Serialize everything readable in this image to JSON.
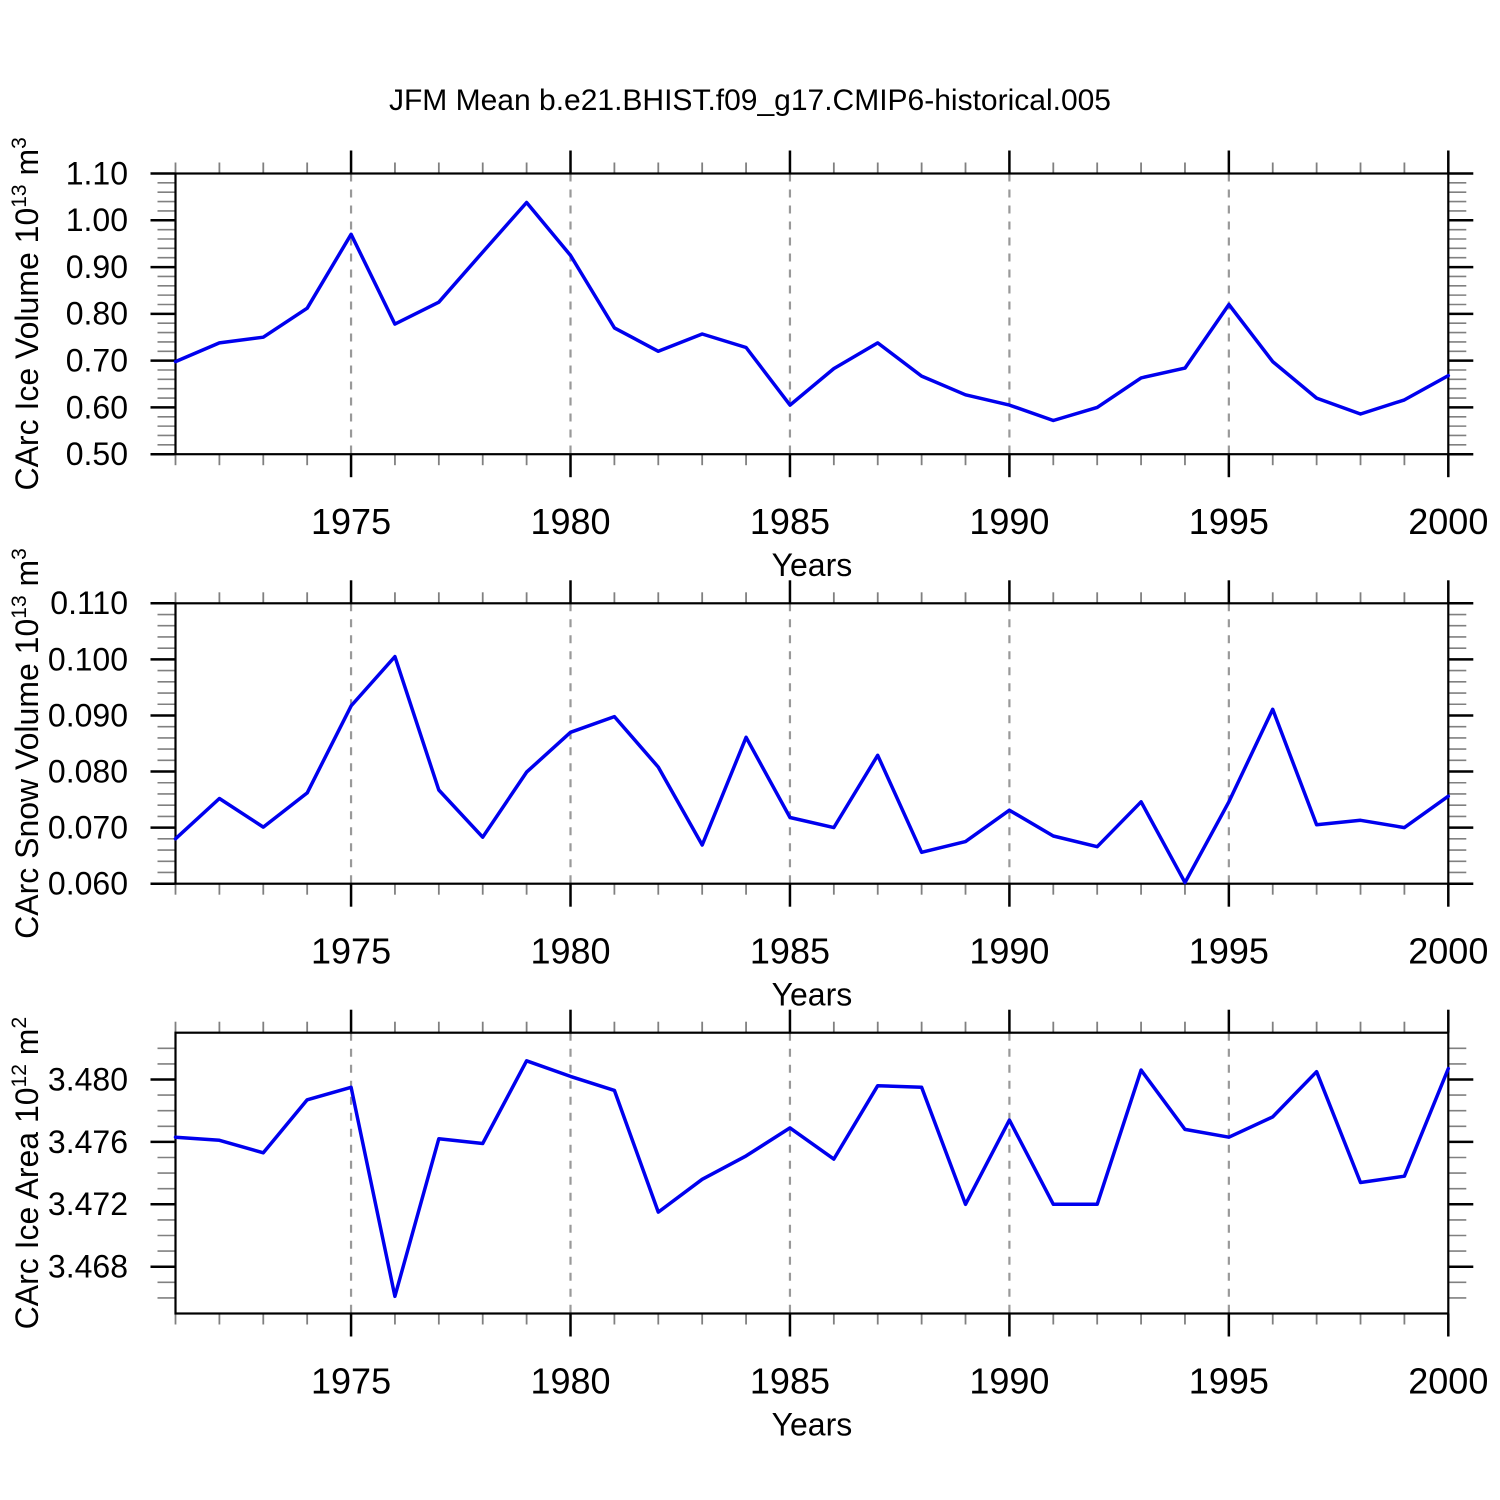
{
  "figure": {
    "title": "JFM Mean b.e21.BHIST.f09_g17.CMIP6-historical.005",
    "background": "#ffffff"
  },
  "style": {
    "line_color": "#0000EE",
    "grid_color": "#999999",
    "axis_color": "#000000",
    "minor_tick_color": "#808080"
  },
  "x": {
    "label": "Years",
    "years": [
      1971,
      1972,
      1973,
      1974,
      1975,
      1976,
      1977,
      1978,
      1979,
      1980,
      1981,
      1982,
      1983,
      1984,
      1985,
      1986,
      1987,
      1988,
      1989,
      1990,
      1991,
      1992,
      1993,
      1994,
      1995,
      1996,
      1997,
      1998,
      1999,
      2000
    ],
    "xlim": [
      1971,
      2000
    ],
    "major": {
      "values": [
        1975,
        1980,
        1985,
        1990,
        1995,
        2000
      ],
      "labels": [
        "1975",
        "1980",
        "1985",
        "1990",
        "1995",
        "2000"
      ]
    },
    "grid_years": [
      1975,
      1980,
      1985,
      1990,
      1995
    ]
  },
  "chart_data": [
    {
      "type": "line",
      "name": "ice-volume",
      "ylabel_parts": {
        "base1": "CArc Ice Volume 10",
        "sup1": "13",
        "base2": " m",
        "sup2": "3"
      },
      "xlabel": "Years",
      "ylim": [
        0.5,
        1.1
      ],
      "yticks": {
        "values": [
          1.1,
          1.0,
          0.9,
          0.8,
          0.7,
          0.6,
          0.5
        ],
        "labels": [
          "1.10",
          "1.00",
          "0.90",
          "0.80",
          "0.70",
          "0.60",
          "0.50"
        ]
      },
      "y_minor_step": 0.02,
      "series": [
        {
          "name": "CArc Ice Volume",
          "values": [
            0.698,
            0.738,
            0.75,
            0.812,
            0.97,
            0.778,
            0.825,
            0.932,
            1.038,
            0.925,
            0.77,
            0.72,
            0.757,
            0.728,
            0.605,
            0.683,
            0.738,
            0.667,
            0.627,
            0.605,
            0.572,
            0.6,
            0.663,
            0.684,
            0.82,
            0.698,
            0.62,
            0.586,
            0.616,
            0.668
          ]
        }
      ]
    },
    {
      "type": "line",
      "name": "snow-volume",
      "ylabel_parts": {
        "base1": "CArc Snow Volume 10",
        "sup1": "13",
        "base2": " m",
        "sup2": "3"
      },
      "xlabel": "Years",
      "ylim": [
        0.06,
        0.11
      ],
      "yticks": {
        "values": [
          0.11,
          0.1,
          0.09,
          0.08,
          0.07,
          0.06
        ],
        "labels": [
          "0.110",
          "0.100",
          "0.090",
          "0.080",
          "0.070",
          "0.060"
        ]
      },
      "y_minor_step": 0.002,
      "series": [
        {
          "name": "CArc Snow Volume",
          "values": [
            0.068,
            0.0752,
            0.0701,
            0.0762,
            0.0917,
            0.1005,
            0.0767,
            0.0683,
            0.0799,
            0.087,
            0.0898,
            0.0808,
            0.0669,
            0.0861,
            0.0718,
            0.07,
            0.0829,
            0.0656,
            0.0675,
            0.0731,
            0.0685,
            0.0666,
            0.0746,
            0.0602,
            0.0746,
            0.0911,
            0.0705,
            0.0713,
            0.07,
            0.0756
          ]
        }
      ]
    },
    {
      "type": "line",
      "name": "ice-area",
      "ylabel_parts": {
        "base1": "CArc Ice Area 10",
        "sup1": "12",
        "base2": " m",
        "sup2": "2"
      },
      "xlabel": "Years",
      "ylim": [
        3.465,
        3.483
      ],
      "yticks": {
        "values": [
          3.48,
          3.476,
          3.472,
          3.468
        ],
        "labels": [
          "3.480",
          "3.476",
          "3.472",
          "3.468"
        ]
      },
      "y_minor_step": 0.001,
      "series": [
        {
          "name": "CArc Ice Area",
          "values": [
            3.4763,
            3.4761,
            3.4753,
            3.4787,
            3.4795,
            3.4661,
            3.4762,
            3.4759,
            3.4812,
            3.4802,
            3.4793,
            3.4715,
            3.4736,
            3.4751,
            3.4769,
            3.4749,
            3.4796,
            3.4795,
            3.472,
            3.4774,
            3.472,
            3.472,
            3.4806,
            3.4768,
            3.4763,
            3.4776,
            3.4805,
            3.4734,
            3.4738,
            3.4807
          ]
        }
      ]
    }
  ]
}
